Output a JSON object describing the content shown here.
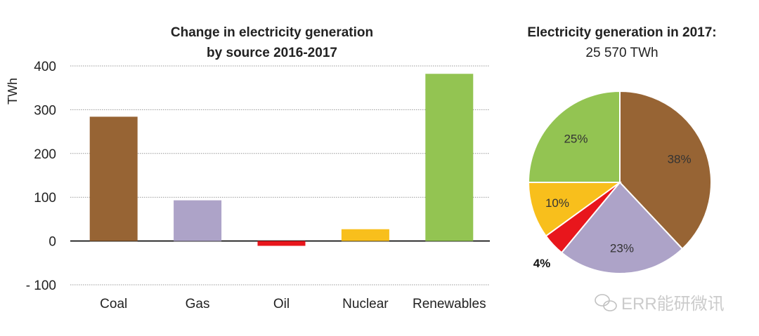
{
  "chart_data": [
    {
      "type": "bar",
      "title_lines": [
        "Change in electricity generation",
        "by source 2016-2017"
      ],
      "xlabel": "",
      "ylabel": "TWh",
      "ylim": [
        -100,
        400
      ],
      "yticks": [
        400,
        300,
        200,
        100,
        0,
        -100
      ],
      "ytick_labels": [
        "400",
        "300",
        "200",
        "100",
        "0",
        "- 100"
      ],
      "grid": true,
      "categories": [
        "Coal",
        "Gas",
        "Oil",
        "Nuclear",
        "Renewables"
      ],
      "values": [
        284,
        93,
        -11,
        27,
        382
      ],
      "colors": [
        "#976434",
        "#ada3c8",
        "#e8161c",
        "#f8bf1c",
        "#93c452"
      ]
    },
    {
      "type": "pie",
      "title": "Electricity generation in 2017:",
      "subtitle": "25 570 TWh",
      "slices": [
        {
          "label": "38%",
          "value": 38,
          "color": "#976434"
        },
        {
          "label": "23%",
          "value": 23,
          "color": "#ada3c8"
        },
        {
          "label": "4%",
          "value": 4,
          "color": "#e8161c"
        },
        {
          "label": "10%",
          "value": 10,
          "color": "#f8bf1c"
        },
        {
          "label": "25%",
          "value": 25,
          "color": "#93c452"
        }
      ]
    }
  ],
  "watermark": "ERR能研微讯"
}
